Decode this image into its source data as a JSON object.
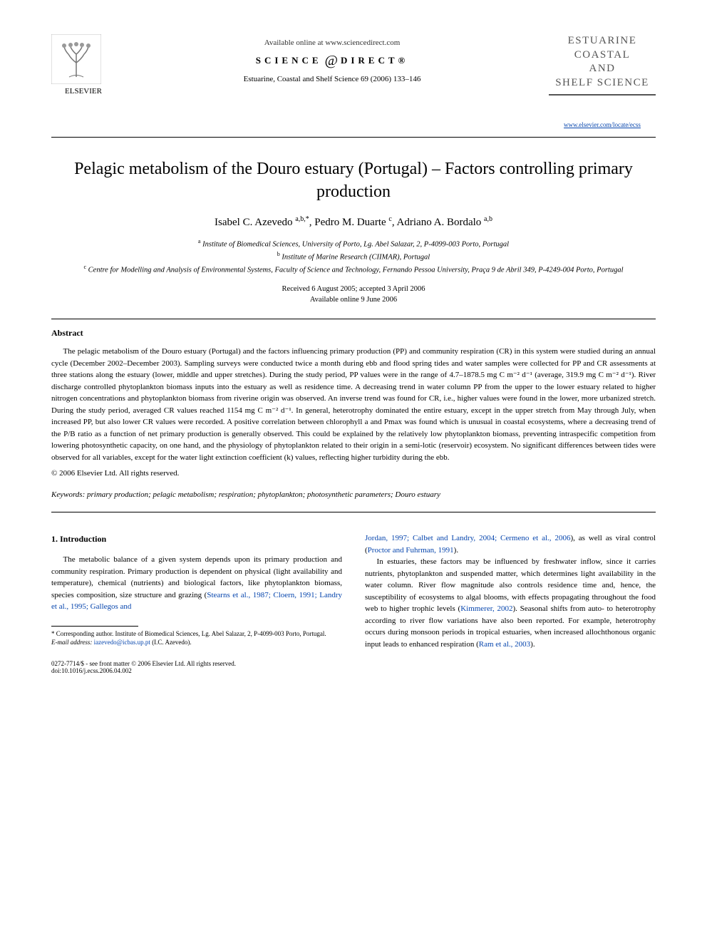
{
  "header": {
    "available_online": "Available online at www.sciencedirect.com",
    "sd_left": "SCIENCE",
    "sd_right": "DIRECT®",
    "journal_ref": "Estuarine, Coastal and Shelf Science 69 (2006) 133–146",
    "publisher_name": "ELSEVIER",
    "journal_logo_line1": "ESTUARINE",
    "journal_logo_line2": "COASTAL",
    "journal_logo_and": "AND",
    "journal_logo_line3": "SHELF SCIENCE",
    "journal_url": "www.elsevier.com/locate/ecss"
  },
  "article": {
    "title": "Pelagic metabolism of the Douro estuary (Portugal) – Factors controlling primary production",
    "authors_html": "Isabel C. Azevedo <sup>a,b,*</sup>, Pedro M. Duarte <sup>c</sup>, Adriano A. Bordalo <sup>a,b</sup>",
    "affiliations": {
      "a": "Institute of Biomedical Sciences, University of Porto, Lg. Abel Salazar, 2, P-4099-003 Porto, Portugal",
      "b": "Institute of Marine Research (CIIMAR), Portugal",
      "c": "Centre for Modelling and Analysis of Environmental Systems, Faculty of Science and Technology, Fernando Pessoa University, Praça 9 de Abril 349, P-4249-004 Porto, Portugal"
    },
    "dates": {
      "received_accepted": "Received 6 August 2005; accepted 3 April 2006",
      "online": "Available online 9 June 2006"
    }
  },
  "abstract": {
    "heading": "Abstract",
    "text": "The pelagic metabolism of the Douro estuary (Portugal) and the factors influencing primary production (PP) and community respiration (CR) in this system were studied during an annual cycle (December 2002–December 2003). Sampling surveys were conducted twice a month during ebb and flood spring tides and water samples were collected for PP and CR assessments at three stations along the estuary (lower, middle and upper stretches). During the study period, PP values were in the range of 4.7–1878.5 mg C m⁻² d⁻¹ (average, 319.9 mg C m⁻² d⁻¹). River discharge controlled phytoplankton biomass inputs into the estuary as well as residence time. A decreasing trend in water column PP from the upper to the lower estuary related to higher nitrogen concentrations and phytoplankton biomass from riverine origin was observed. An inverse trend was found for CR, i.e., higher values were found in the lower, more urbanized stretch. During the study period, averaged CR values reached 1154 mg C m⁻² d⁻¹. In general, heterotrophy dominated the entire estuary, except in the upper stretch from May through July, when increased PP, but also lower CR values were recorded. A positive correlation between chlorophyll a and Pmax was found which is unusual in coastal ecosystems, where a decreasing trend of the P/B ratio as a function of net primary production is generally observed. This could be explained by the relatively low phytoplankton biomass, preventing intraspecific competition from lowering photosynthetic capacity, on one hand, and the physiology of phytoplankton related to their origin in a semi-lotic (reservoir) ecosystem. No significant differences between tides were observed for all variables, except for the water light extinction coefficient (k) values, reflecting higher turbidity during the ebb.",
    "copyright": "© 2006 Elsevier Ltd. All rights reserved."
  },
  "keywords": {
    "label": "Keywords:",
    "text": "primary production; pelagic metabolism; respiration; phytoplankton; photosynthetic parameters; Douro estuary"
  },
  "introduction": {
    "heading": "1. Introduction",
    "col1_p1_a": "The metabolic balance of a given system depends upon its primary production and community respiration. Primary production is dependent on physical (light availability and temperature), chemical (nutrients) and biological factors, like phytoplankton biomass, species composition, size structure and grazing (",
    "col1_p1_link": "Stearns et al., 1987; Cloern, 1991; Landry et al., 1995; Gallegos and",
    "col2_p1_link": "Jordan, 1997; Calbet and Landry, 2004; Cermeno et al., 2006",
    "col2_p1_a": "), as well as viral control (",
    "col2_p1_link2": "Proctor and Fuhrman, 1991",
    "col2_p1_b": ").",
    "col2_p2_a": "In estuaries, these factors may be influenced by freshwater inflow, since it carries nutrients, phytoplankton and suspended matter, which determines light availability in the water column. River flow magnitude also controls residence time and, hence, the susceptibility of ecosystems to algal blooms, with effects propagating throughout the food web to higher trophic levels (",
    "col2_p2_link1": "Kimmerer, 2002",
    "col2_p2_b": "). Seasonal shifts from auto- to heterotrophy according to river flow variations have also been reported. For example, heterotrophy occurs during monsoon periods in tropical estuaries, when increased allochthonous organic input leads to enhanced respiration (",
    "col2_p2_link2": "Ram et al., 2003",
    "col2_p2_c": ")."
  },
  "footnote": {
    "corresponding": "* Corresponding author. Institute of Biomedical Sciences, Lg. Abel Salazar, 2, P-4099-003 Porto, Portugal.",
    "email_label": "E-mail address:",
    "email": "iazevedo@icbas.up.pt",
    "email_after": "(I.C. Azevedo)."
  },
  "footer": {
    "issn_line": "0272-7714/$ - see front matter © 2006 Elsevier Ltd. All rights reserved.",
    "doi": "doi:10.1016/j.ecss.2006.04.002"
  },
  "colors": {
    "text": "#000000",
    "link": "#0645ad",
    "logo_gray": "#555555",
    "background": "#ffffff"
  },
  "typography": {
    "body_family": "Georgia, 'Times New Roman', serif",
    "title_size_pt": 24,
    "author_size_pt": 15,
    "body_size_pt": 11,
    "footnote_size_pt": 9
  }
}
